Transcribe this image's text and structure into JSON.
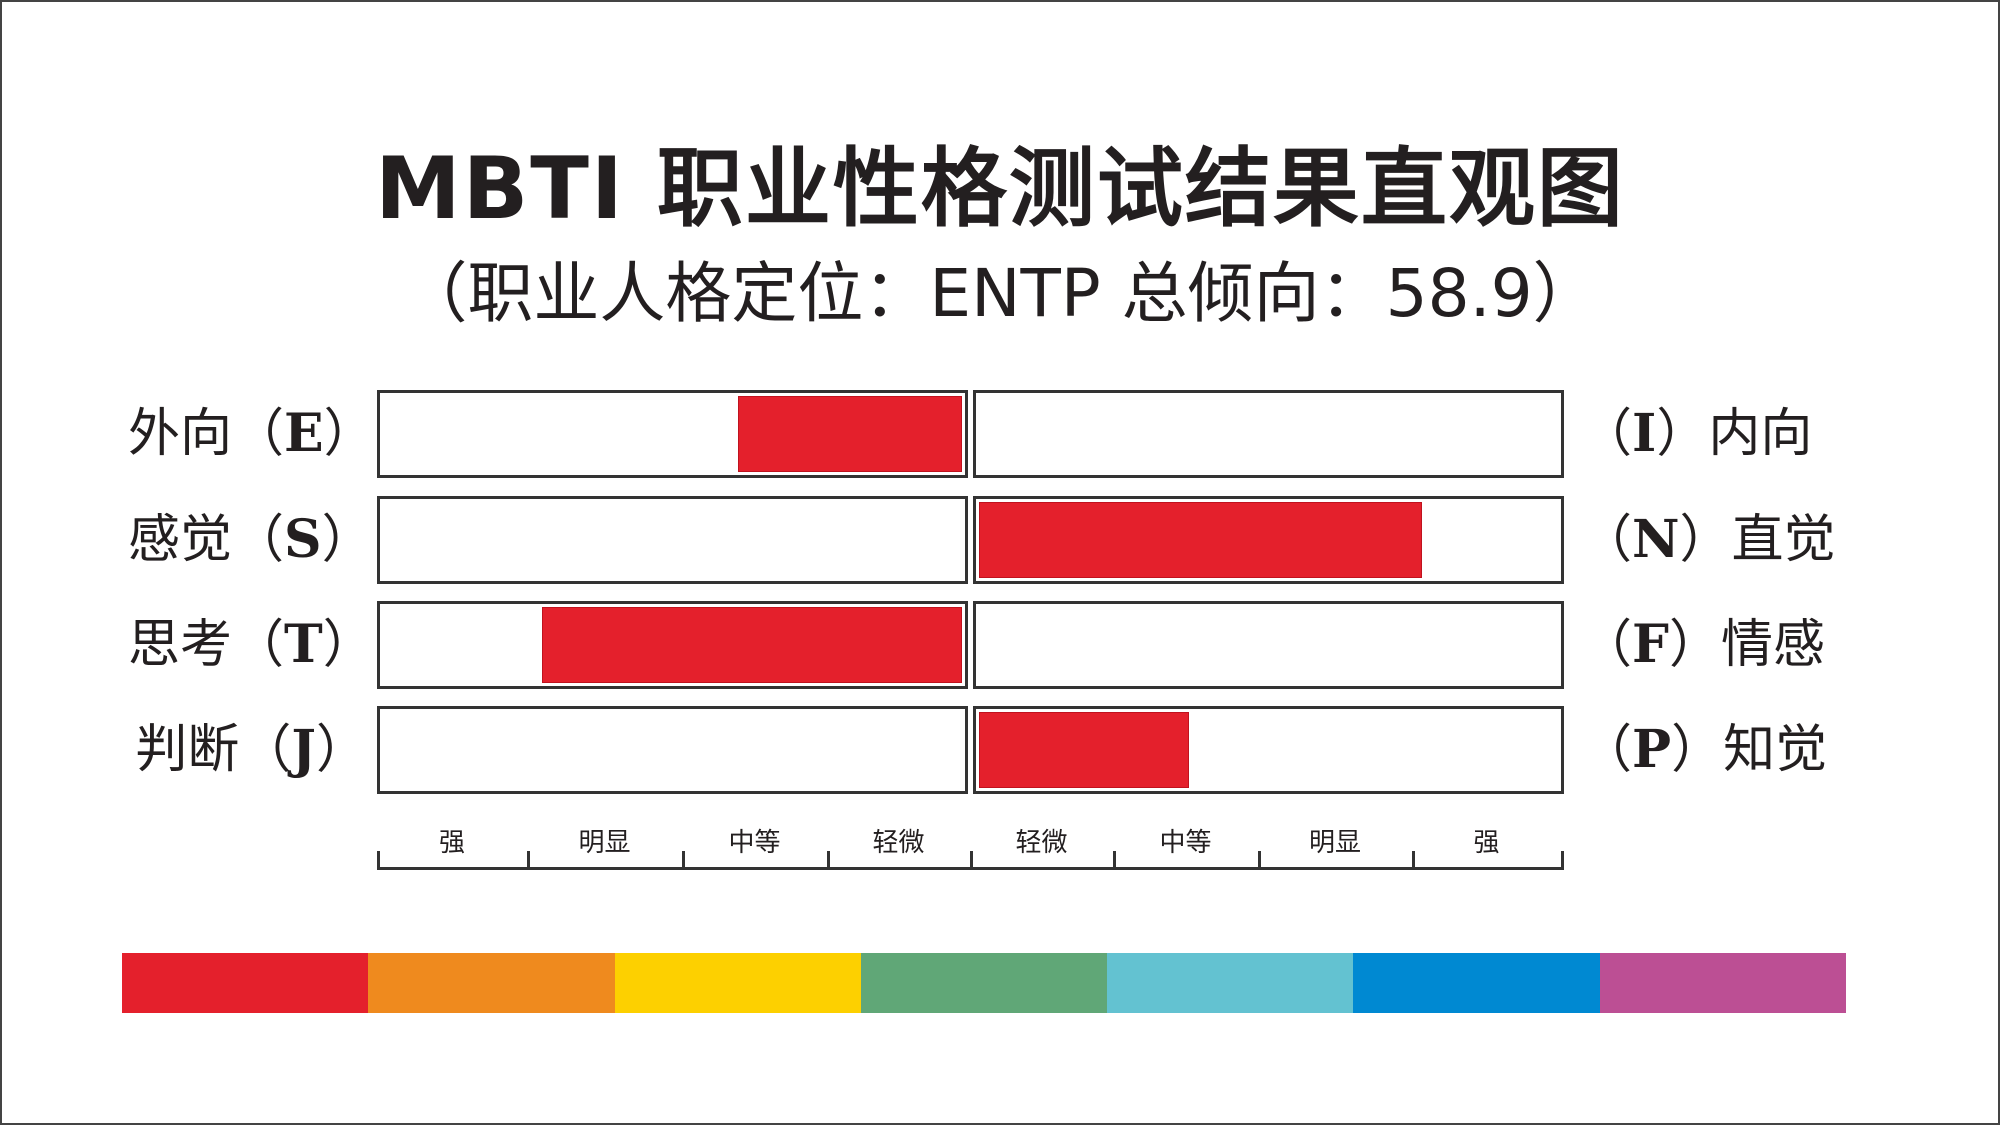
{
  "title": "MBTI 职业性格测试结果直观图",
  "subtitle": "（职业人格定位：ENTP 总倾向：58.9）",
  "chart_data": {
    "type": "bar",
    "orientation": "diverging-horizontal",
    "dimensions": [
      {
        "left_label": "外向（",
        "left_letter": "E",
        "left_close": "）",
        "right_open": "（",
        "right_letter": "I",
        "right_label": "）内向",
        "side": "left",
        "level": 1.55
      },
      {
        "left_label": "感觉（",
        "left_letter": "S",
        "left_close": "）",
        "right_open": "（",
        "right_letter": "N",
        "right_label": "）直觉",
        "side": "right",
        "level": 3.06
      },
      {
        "left_label": "思考（",
        "left_letter": "T",
        "left_close": "）",
        "right_open": "（",
        "right_letter": "F",
        "right_label": "）情感",
        "side": "left",
        "level": 2.9
      },
      {
        "left_label": "判断（",
        "left_letter": "J",
        "left_close": "）",
        "right_open": "（",
        "right_letter": "P",
        "right_label": "）知觉",
        "side": "right",
        "level": 1.45
      }
    ],
    "scale_labels": [
      "强",
      "明显",
      "中等",
      "轻微",
      "轻微",
      "中等",
      "明显",
      "强"
    ],
    "scale_max": 4,
    "bar_color": "#e4202c"
  },
  "color_strip": [
    "#e4202c",
    "#ef8a1e",
    "#fdd000",
    "#60a777",
    "#63c2d1",
    "#0089d2",
    "#bc4f94"
  ]
}
